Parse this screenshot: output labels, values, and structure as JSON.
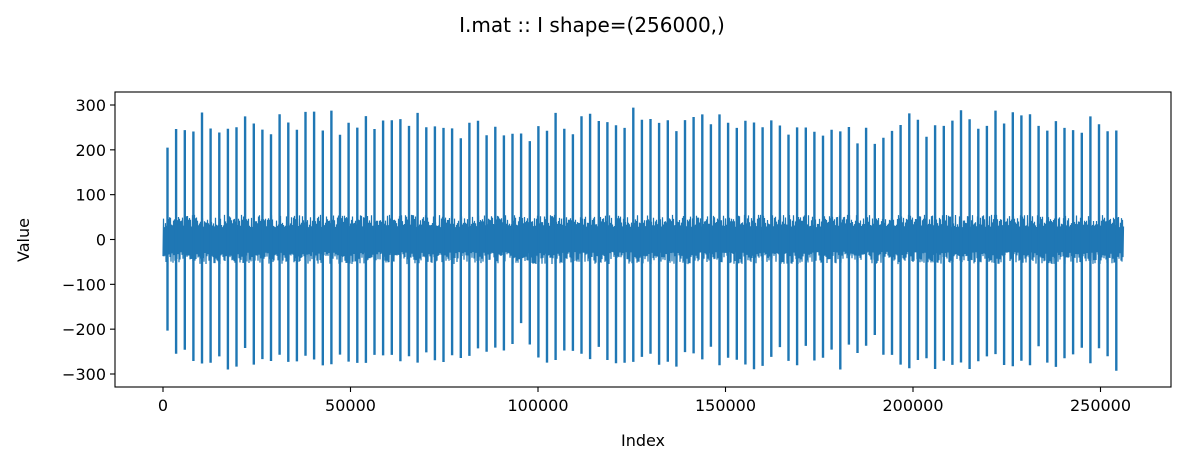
{
  "figure": {
    "title": "I.mat :: I  shape=(256000,)"
  },
  "chart_data": {
    "type": "line",
    "title": "I.mat :: I  shape=(256000,)",
    "xlabel": "Index",
    "ylabel": "Value",
    "xlim": [
      -12800,
      268800
    ],
    "ylim": [
      -329,
      329
    ],
    "xticks": [
      0,
      50000,
      100000,
      150000,
      200000,
      250000
    ],
    "xtick_labels": [
      "0",
      "50000",
      "100000",
      "150000",
      "200000",
      "250000"
    ],
    "yticks": [
      -300,
      -200,
      -100,
      0,
      100,
      200,
      300
    ],
    "ytick_labels": [
      "−300",
      "−200",
      "−100",
      "0",
      "100",
      "200",
      "300"
    ],
    "grid": false,
    "legend": "none",
    "series_color": "#1f77b4",
    "series": [
      {
        "n_points": 256000,
        "baseline_noise_range": [
          -55,
          55
        ],
        "spike_positive_values_approx": [
          240,
          250,
          285,
          280,
          290,
          285,
          265,
          280,
          290,
          275,
          300,
          280,
          275,
          295,
          290,
          280,
          300,
          290,
          280,
          295,
          275,
          285,
          265,
          280,
          270,
          285,
          275,
          280,
          265,
          290,
          285,
          270,
          275,
          285,
          265,
          270,
          275,
          260,
          270,
          250,
          265
        ],
        "spike_negative_values_approx": [
          -215,
          -270,
          -280,
          -295,
          -290,
          -285,
          -280,
          -295,
          -290,
          -280,
          -285,
          -300,
          -285,
          -280,
          -290,
          -295,
          -285,
          -280,
          -290,
          -280,
          -295,
          -285,
          -280,
          -290,
          -270,
          -280,
          -285,
          -290,
          -295,
          -280,
          -270,
          -285,
          -290,
          -275,
          -280,
          -285,
          -270,
          -290,
          -275,
          -280,
          -270
        ],
        "spike_interval_approx": 2300
      }
    ]
  }
}
